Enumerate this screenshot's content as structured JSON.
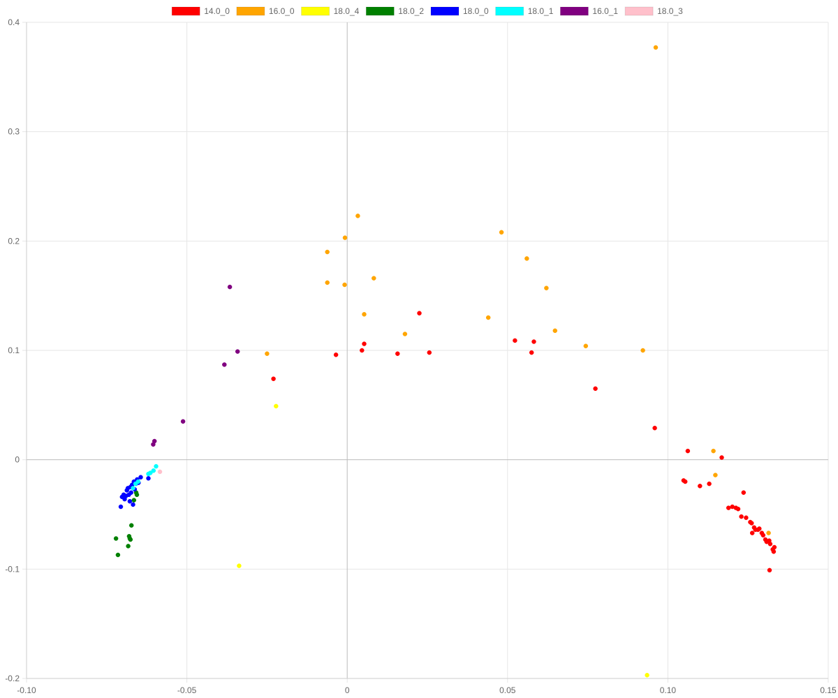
{
  "chart_data": {
    "type": "scatter",
    "title": "",
    "xlabel": "",
    "ylabel": "",
    "xlim": [
      -0.1,
      0.15
    ],
    "ylim": [
      -0.2,
      0.4
    ],
    "grid": true,
    "legend_position": "top",
    "x_ticks": [
      {
        "value": -0.1,
        "label": "-0.10"
      },
      {
        "value": -0.05,
        "label": "-0.05"
      },
      {
        "value": 0,
        "label": "0"
      },
      {
        "value": 0.05,
        "label": "0.05"
      },
      {
        "value": 0.1,
        "label": "0.10"
      },
      {
        "value": 0.15,
        "label": "0.15"
      }
    ],
    "y_ticks": [
      {
        "value": -0.2,
        "label": "-0.2"
      },
      {
        "value": -0.1,
        "label": "-0.1"
      },
      {
        "value": 0,
        "label": "0"
      },
      {
        "value": 0.1,
        "label": "0.1"
      },
      {
        "value": 0.2,
        "label": "0.2"
      },
      {
        "value": 0.3,
        "label": "0.3"
      },
      {
        "value": 0.4,
        "label": "0.4"
      }
    ],
    "series": [
      {
        "name": "14.0_0",
        "color": "#ff0000",
        "points": [
          [
            -0.023,
            0.074
          ],
          [
            -0.0035,
            0.096
          ],
          [
            0.0046,
            0.1
          ],
          [
            0.0053,
            0.106
          ],
          [
            0.0157,
            0.097
          ],
          [
            0.0225,
            0.134
          ],
          [
            0.0256,
            0.098
          ],
          [
            0.0523,
            0.109
          ],
          [
            0.0575,
            0.098
          ],
          [
            0.0582,
            0.108
          ],
          [
            0.0774,
            0.065
          ],
          [
            0.0959,
            0.029
          ],
          [
            0.1049,
            -0.019
          ],
          [
            0.1054,
            -0.02
          ],
          [
            0.1062,
            0.008
          ],
          [
            0.11,
            -0.024
          ],
          [
            0.1129,
            -0.022
          ],
          [
            0.1168,
            0.002
          ],
          [
            0.1189,
            -0.044
          ],
          [
            0.1201,
            -0.043
          ],
          [
            0.1212,
            -0.044
          ],
          [
            0.1219,
            -0.045
          ],
          [
            0.1229,
            -0.052
          ],
          [
            0.1236,
            -0.03
          ],
          [
            0.1244,
            -0.053
          ],
          [
            0.1257,
            -0.057
          ],
          [
            0.1261,
            -0.058
          ],
          [
            0.1263,
            -0.067
          ],
          [
            0.1269,
            -0.062
          ],
          [
            0.1273,
            -0.064
          ],
          [
            0.1281,
            -0.064
          ],
          [
            0.1285,
            -0.063
          ],
          [
            0.1293,
            -0.067
          ],
          [
            0.1297,
            -0.069
          ],
          [
            0.1304,
            -0.073
          ],
          [
            0.1308,
            -0.075
          ],
          [
            0.1316,
            -0.074
          ],
          [
            0.1319,
            -0.077
          ],
          [
            0.1327,
            -0.082
          ],
          [
            0.133,
            -0.084
          ],
          [
            0.1332,
            -0.08
          ],
          [
            0.1317,
            -0.101
          ]
        ]
      },
      {
        "name": "16.0_0",
        "color": "#ffa500",
        "points": [
          [
            -0.025,
            0.097
          ],
          [
            -0.0062,
            0.19
          ],
          [
            -0.0062,
            0.162
          ],
          [
            -0.0008,
            0.16
          ],
          [
            -0.0007,
            0.203
          ],
          [
            0.0033,
            0.223
          ],
          [
            0.0053,
            0.133
          ],
          [
            0.0083,
            0.166
          ],
          [
            0.018,
            0.115
          ],
          [
            0.044,
            0.13
          ],
          [
            0.0481,
            0.208
          ],
          [
            0.056,
            0.184
          ],
          [
            0.0621,
            0.157
          ],
          [
            0.0648,
            0.118
          ],
          [
            0.0744,
            0.104
          ],
          [
            0.0922,
            0.1
          ],
          [
            0.0962,
            0.377
          ],
          [
            0.1142,
            0.008
          ],
          [
            0.1148,
            -0.014
          ],
          [
            0.1314,
            -0.067
          ]
        ]
      },
      {
        "name": "18.0_4",
        "color": "#ffff00",
        "points": [
          [
            -0.0222,
            0.049
          ],
          [
            -0.0337,
            -0.097
          ],
          [
            0.0935,
            -0.197
          ]
        ]
      },
      {
        "name": "18.0_2",
        "color": "#008000",
        "points": [
          [
            -0.0721,
            -0.072
          ],
          [
            -0.0715,
            -0.087
          ],
          [
            -0.0683,
            -0.079
          ],
          [
            -0.068,
            -0.07
          ],
          [
            -0.0678,
            -0.072
          ],
          [
            -0.0676,
            -0.073
          ],
          [
            -0.0673,
            -0.06
          ],
          [
            -0.0665,
            -0.037
          ],
          [
            -0.0658,
            -0.03
          ],
          [
            -0.0656,
            -0.032
          ]
        ]
      },
      {
        "name": "18.0_0",
        "color": "#0000ff",
        "points": [
          [
            -0.0706,
            -0.043
          ],
          [
            -0.0702,
            -0.034
          ],
          [
            -0.0697,
            -0.032
          ],
          [
            -0.0694,
            -0.036
          ],
          [
            -0.069,
            -0.033
          ],
          [
            -0.0687,
            -0.028
          ],
          [
            -0.0684,
            -0.026
          ],
          [
            -0.0681,
            -0.032
          ],
          [
            -0.0678,
            -0.038
          ],
          [
            -0.0676,
            -0.025
          ],
          [
            -0.0674,
            -0.03
          ],
          [
            -0.0671,
            -0.023
          ],
          [
            -0.0668,
            -0.041
          ],
          [
            -0.0665,
            -0.02
          ],
          [
            -0.0663,
            -0.027
          ],
          [
            -0.0659,
            -0.022
          ],
          [
            -0.0655,
            -0.018
          ],
          [
            -0.0651,
            -0.021
          ],
          [
            -0.0644,
            -0.016
          ],
          [
            -0.062,
            -0.017
          ]
        ]
      },
      {
        "name": "18.0_1",
        "color": "#00ffff",
        "points": [
          [
            -0.0668,
            -0.026
          ],
          [
            -0.066,
            -0.022
          ],
          [
            -0.0652,
            -0.02
          ],
          [
            -0.062,
            -0.013
          ],
          [
            -0.0614,
            -0.012
          ],
          [
            -0.0604,
            -0.01
          ],
          [
            -0.0596,
            -0.006
          ]
        ]
      },
      {
        "name": "16.0_1",
        "color": "#800080",
        "points": [
          [
            -0.0605,
            0.014
          ],
          [
            -0.0601,
            0.017
          ],
          [
            -0.0512,
            0.035
          ],
          [
            -0.0383,
            0.087
          ],
          [
            -0.0366,
            0.158
          ],
          [
            -0.0342,
            0.099
          ]
        ]
      },
      {
        "name": "18.0_3",
        "color": "#ffc0cb",
        "points": [
          [
            -0.0584,
            -0.011
          ]
        ]
      }
    ]
  }
}
